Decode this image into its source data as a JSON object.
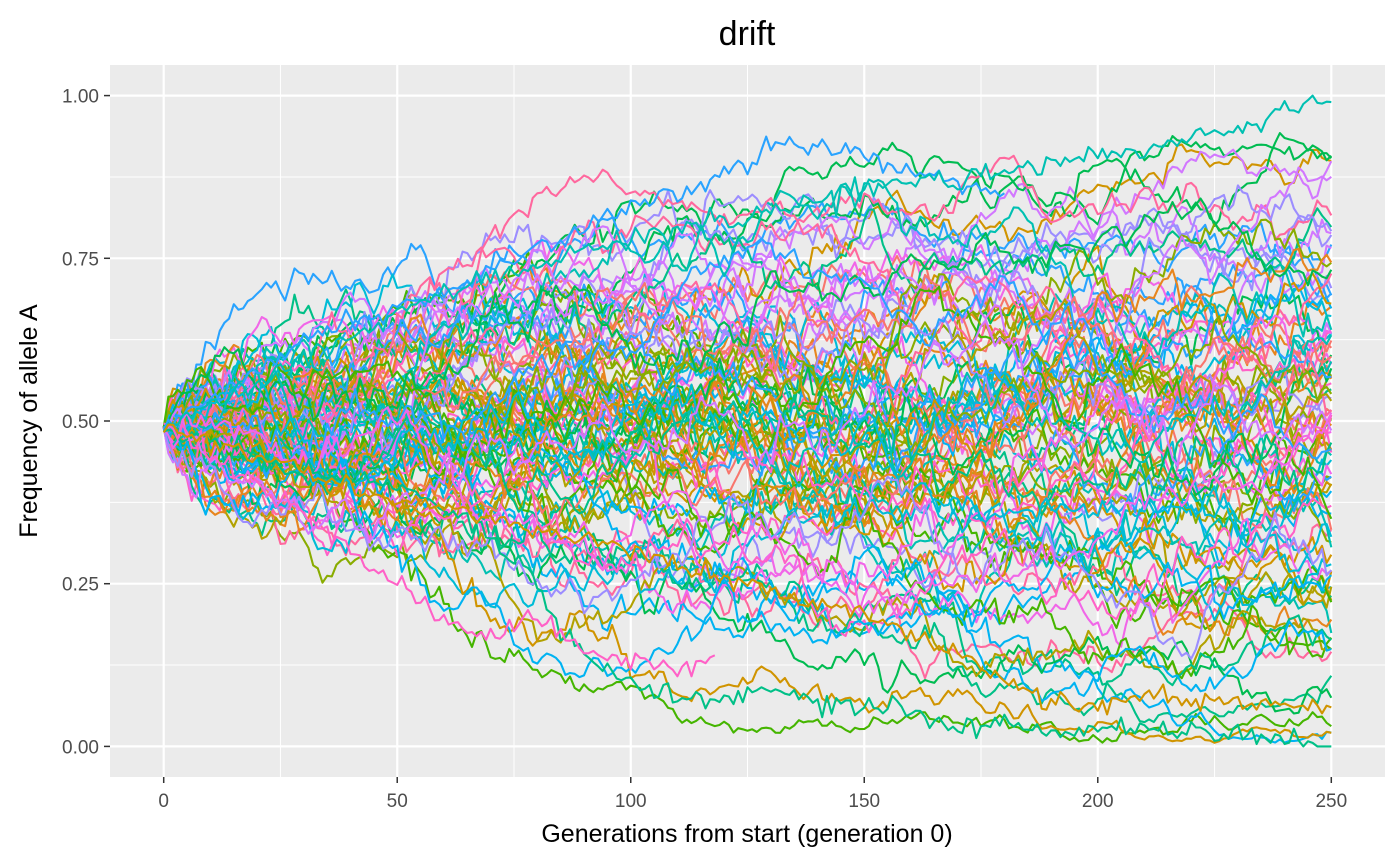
{
  "chart_data": {
    "type": "line",
    "title": "drift",
    "xlabel": "Generations from start (generation 0)",
    "ylabel": "Frequency of allele A",
    "xlim": [
      -11.5,
      261.5
    ],
    "ylim": [
      -0.047,
      1.047
    ],
    "x_ticks": [
      0,
      50,
      100,
      150,
      200,
      250
    ],
    "x_tick_labels": [
      "0",
      "50",
      "100",
      "150",
      "200",
      "250"
    ],
    "y_ticks": [
      0,
      0.25,
      0.5,
      0.75,
      1.0
    ],
    "y_tick_labels": [
      "0.00",
      "0.25",
      "0.50",
      "0.75",
      "1.00"
    ],
    "grid": true,
    "legend": "none",
    "background": "#ebebeb",
    "gridline_color": "#ffffff",
    "generations": 250,
    "start_frequency": 0.49,
    "series_colors": [
      "#F8766D",
      "#E7851E",
      "#D09400",
      "#B2A100",
      "#89AC00",
      "#45B500",
      "#00BC51",
      "#00C087",
      "#00C0B2",
      "#00BCD6",
      "#00B3F2",
      "#29A3FF",
      "#9C8DFF",
      "#D277FF",
      "#F166E8",
      "#FF61C7",
      "#FF689E"
    ],
    "highlighted_series": [
      {
        "color": "#00C087",
        "x": [
          0,
          25,
          50,
          62,
          70,
          78,
          85,
          90,
          100,
          110,
          120,
          130,
          140,
          150,
          160,
          170,
          180,
          190,
          200,
          210,
          220,
          230,
          240,
          250
        ],
        "y": [
          0.49,
          0.43,
          0.4,
          0.36,
          0.32,
          0.27,
          0.18,
          0.14,
          0.1,
          0.08,
          0.07,
          0.09,
          0.07,
          0.06,
          0.05,
          0.03,
          0.04,
          0.02,
          0.02,
          0.03,
          0.02,
          0.02,
          0.01,
          0.0
        ]
      },
      {
        "color": "#FF61C7",
        "x": [
          0,
          30,
          45,
          52,
          58,
          65,
          72,
          80,
          90,
          100,
          110,
          118
        ],
        "y": [
          0.49,
          0.36,
          0.27,
          0.24,
          0.2,
          0.18,
          0.17,
          0.2,
          0.15,
          0.13,
          0.12,
          0.14
        ]
      },
      {
        "color": "#29A3FF",
        "x": [
          0,
          30,
          60,
          90,
          110,
          125,
          132,
          140,
          150,
          160,
          180
        ],
        "y": [
          0.49,
          0.62,
          0.7,
          0.8,
          0.85,
          0.9,
          0.93,
          0.92,
          0.91,
          0.88,
          0.85
        ]
      },
      {
        "color": "#00C0B2",
        "x": [
          0,
          60,
          100,
          130,
          150,
          170,
          190,
          210,
          230,
          245,
          250
        ],
        "y": [
          0.49,
          0.7,
          0.78,
          0.82,
          0.86,
          0.87,
          0.9,
          0.92,
          0.95,
          0.99,
          0.99
        ]
      },
      {
        "color": "#D09400",
        "x": [
          0,
          50,
          100,
          150,
          170,
          180,
          190,
          200,
          210,
          230,
          250
        ],
        "y": [
          0.49,
          0.38,
          0.3,
          0.2,
          0.14,
          0.1,
          0.07,
          0.06,
          0.08,
          0.07,
          0.06
        ]
      }
    ]
  }
}
